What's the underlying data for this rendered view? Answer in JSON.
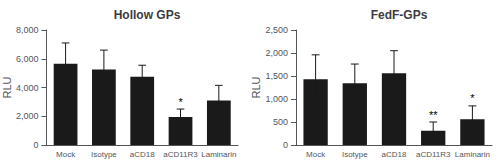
{
  "chart_data": [
    {
      "type": "bar",
      "title": "Hollow GPs",
      "ylabel": "RLU",
      "categories": [
        "Mock",
        "Isotype",
        "aCD18",
        "aCD11R3",
        "Laminarin"
      ],
      "values": [
        5650,
        5250,
        4750,
        1950,
        3100
      ],
      "errors": [
        1450,
        1350,
        800,
        550,
        1050
      ],
      "color": "#1a1a1a",
      "ylim": [
        0,
        8000
      ],
      "yticks": [
        0,
        {
          "value": 2000,
          "label": "2,000"
        },
        {
          "value": 4000,
          "label": "4,000"
        },
        {
          "value": 6000,
          "label": "6,000"
        },
        {
          "value": 8000,
          "label": "8,000"
        }
      ],
      "annotations": [
        {
          "category": "aCD11R3",
          "text": "*"
        }
      ],
      "grid": false
    },
    {
      "type": "bar",
      "title": "FedF-GPs",
      "ylabel": "RLU",
      "categories": [
        "Mock",
        "Isotype",
        "aCD18",
        "aCD11R3",
        "Laminarin"
      ],
      "values": [
        1430,
        1340,
        1560,
        310,
        560
      ],
      "errors": [
        530,
        420,
        490,
        190,
        290
      ],
      "color": "#1a1a1a",
      "ylim": [
        0,
        2500
      ],
      "yticks": [
        0,
        500,
        {
          "value": 1000,
          "label": "1,000"
        },
        {
          "value": 1500,
          "label": "1,500"
        },
        {
          "value": 2000,
          "label": "2,000"
        },
        {
          "value": 2500,
          "label": "2,500"
        }
      ],
      "annotations": [
        {
          "category": "aCD11R3",
          "text": "**"
        },
        {
          "category": "Laminarin",
          "text": "*"
        }
      ],
      "grid": false
    }
  ]
}
